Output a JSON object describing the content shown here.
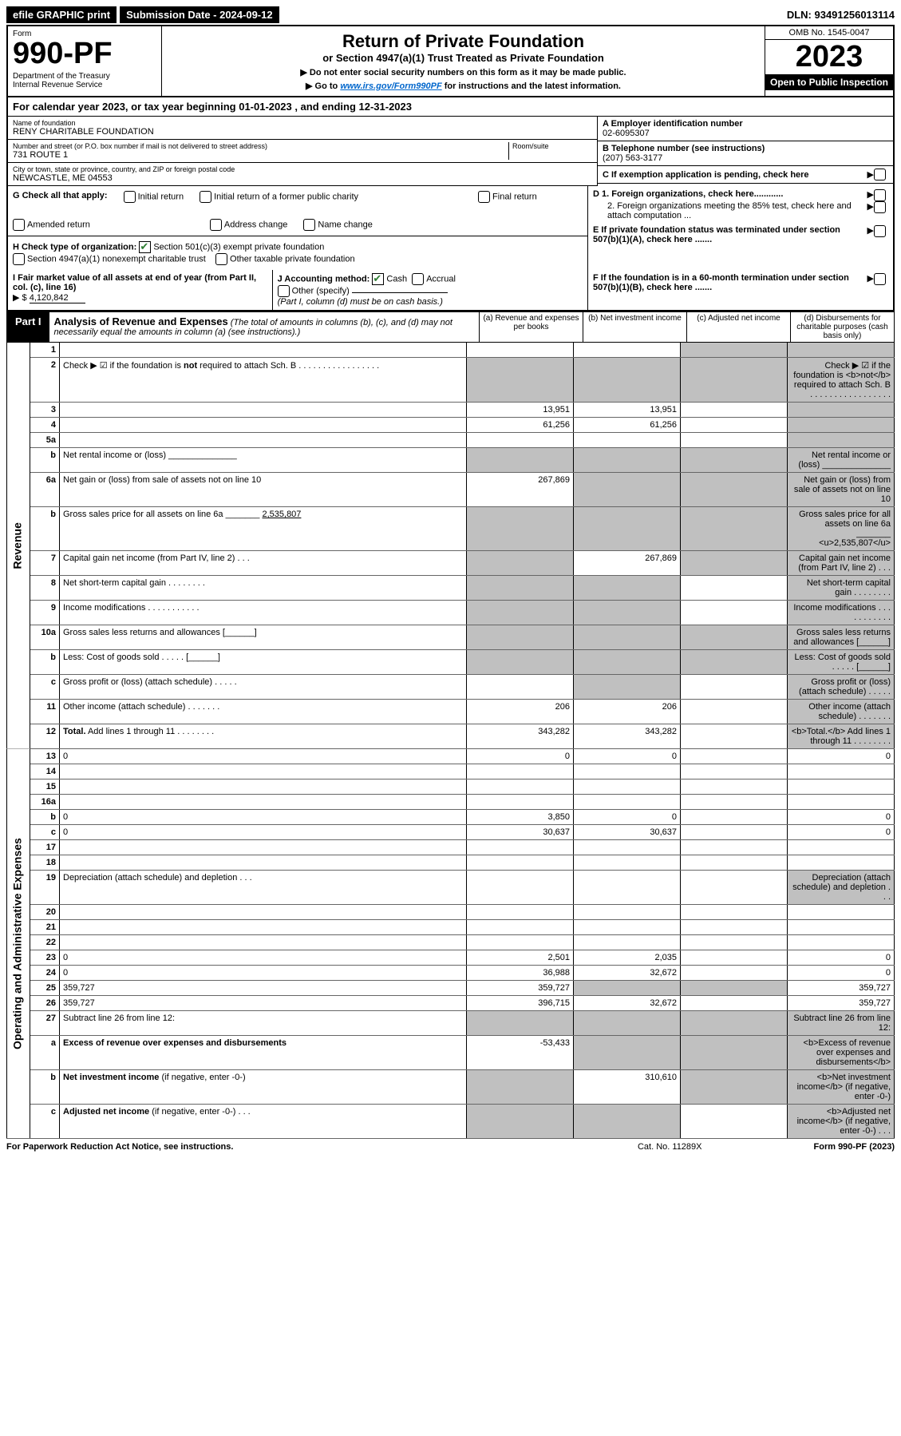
{
  "top": {
    "efile": "efile GRAPHIC print",
    "sub_lbl": "Submission Date - 2024-09-12",
    "dln": "DLN: 93491256013114"
  },
  "header": {
    "form_lbl": "Form",
    "form_num": "990-PF",
    "dept": "Department of the Treasury\nInternal Revenue Service",
    "title": "Return of Private Foundation",
    "subtitle": "or Section 4947(a)(1) Trust Treated as Private Foundation",
    "inst1": "▶ Do not enter social security numbers on this form as it may be made public.",
    "inst2_pre": "▶ Go to ",
    "inst2_link": "www.irs.gov/Form990PF",
    "inst2_post": " for instructions and the latest information.",
    "omb": "OMB No. 1545-0047",
    "year": "2023",
    "open": "Open to Public Inspection"
  },
  "calyear": "For calendar year 2023, or tax year beginning 01-01-2023           , and ending 12-31-2023",
  "name": {
    "lbl": "Name of foundation",
    "val": "RENY CHARITABLE FOUNDATION"
  },
  "addr": {
    "lbl": "Number and street (or P.O. box number if mail is not delivered to street address)",
    "val": "731 ROUTE 1",
    "room_lbl": "Room/suite"
  },
  "city": {
    "lbl": "City or town, state or province, country, and ZIP or foreign postal code",
    "val": "NEWCASTLE, ME  04553"
  },
  "ein": {
    "lbl": "A Employer identification number",
    "val": "02-6095307"
  },
  "tel": {
    "lbl": "B Telephone number (see instructions)",
    "val": "(207) 563-3177"
  },
  "c_lbl": "C If exemption application is pending, check here",
  "g": {
    "lbl": "G Check all that apply:",
    "opts": [
      "Initial return",
      "Initial return of a former public charity",
      "Final return",
      "Amended return",
      "Address change",
      "Name change"
    ]
  },
  "h": {
    "lbl": "H Check type of organization:",
    "o1": "Section 501(c)(3) exempt private foundation",
    "o2": "Section 4947(a)(1) nonexempt charitable trust",
    "o3": "Other taxable private foundation"
  },
  "d1": "D 1. Foreign organizations, check here............",
  "d2": "2. Foreign organizations meeting the 85% test, check here and attach computation ...",
  "e": "E  If private foundation status was terminated under section 507(b)(1)(A), check here .......",
  "f": "F  If the foundation is in a 60-month termination under section 507(b)(1)(B), check here .......",
  "i": {
    "lbl": "I Fair market value of all assets at end of year (from Part II, col. (c), line 16)",
    "val": "4,120,842"
  },
  "j": {
    "lbl": "J Accounting method:",
    "o1": "Cash",
    "o2": "Accrual",
    "o3": "Other (specify)",
    "note": "(Part I, column (d) must be on cash basis.)"
  },
  "part1": {
    "lbl": "Part I",
    "title": "Analysis of Revenue and Expenses",
    "note": " (The total of amounts in columns (b), (c), and (d) may not necessarily equal the amounts in column (a) (see instructions).)",
    "ca": "(a)  Revenue and expenses per books",
    "cb": "(b)  Net investment income",
    "cc": "(c)  Adjusted net income",
    "cd": "(d)  Disbursements for charitable purposes (cash basis only)"
  },
  "side": {
    "rev": "Revenue",
    "oae": "Operating and Administrative Expenses"
  },
  "rows": [
    {
      "n": "1",
      "d": "",
      "a": "",
      "b": "",
      "c": "",
      "shade_cd": true
    },
    {
      "n": "2",
      "d": "Check ▶ ☑ if the foundation is <b>not</b> required to attach Sch. B    .  .  .  .  .  .  .  .  .  .  .  .  .  .  .  .  .",
      "shade_all": true
    },
    {
      "n": "3",
      "d": "",
      "a": "13,951",
      "b": "13,951",
      "c": "",
      "shade_d": true
    },
    {
      "n": "4",
      "d": "",
      "a": "61,256",
      "b": "61,256",
      "c": "",
      "shade_d": true
    },
    {
      "n": "5a",
      "d": "",
      "a": "",
      "b": "",
      "c": "",
      "shade_d": true
    },
    {
      "n": "b",
      "d": "Net rental income or (loss) ______________",
      "shade_all": true
    },
    {
      "n": "6a",
      "d": "Net gain or (loss) from sale of assets not on line 10",
      "a": "267,869",
      "shade_bcd": true
    },
    {
      "n": "b",
      "d": "Gross sales price for all assets on line 6a _______ <u>2,535,807</u>",
      "shade_all": true
    },
    {
      "n": "7",
      "d": "Capital gain net income (from Part IV, line 2)   .   .   .",
      "shade_a": true,
      "b": "267,869",
      "shade_cd": true
    },
    {
      "n": "8",
      "d": "Net short-term capital gain   .  .  .  .  .  .  .  .",
      "shade_ab": true,
      "c": "",
      "shade_d": true
    },
    {
      "n": "9",
      "d": "Income modifications  .  .  .  .  .  .  .  .  .  .  .",
      "shade_ab": true,
      "c": "",
      "shade_d": true
    },
    {
      "n": "10a",
      "d": "Gross sales less returns and allowances  [______]",
      "shade_all": true
    },
    {
      "n": "b",
      "d": "Less: Cost of goods sold    .  .  .  .  .  [______]",
      "shade_all": true
    },
    {
      "n": "c",
      "d": "Gross profit or (loss) (attach schedule)    .  .  .  .  .",
      "a": "",
      "shade_b": true,
      "c": "",
      "shade_d": true
    },
    {
      "n": "11",
      "d": "Other income (attach schedule)   .  .  .  .  .  .  .",
      "a": "206",
      "b": "206",
      "c": "",
      "shade_d": true
    },
    {
      "n": "12",
      "d": "<b>Total.</b> Add lines 1 through 11   .  .  .  .  .  .  .  .",
      "a": "343,282",
      "b": "343,282",
      "c": "",
      "shade_d": true,
      "bold": true
    },
    {
      "n": "13",
      "d": "0",
      "a": "0",
      "b": "0",
      "c": "",
      "sect": "oae"
    },
    {
      "n": "14",
      "d": "",
      "a": "",
      "b": "",
      "c": ""
    },
    {
      "n": "15",
      "d": "",
      "a": "",
      "b": "",
      "c": ""
    },
    {
      "n": "16a",
      "d": "",
      "a": "",
      "b": "",
      "c": ""
    },
    {
      "n": "b",
      "d": "0",
      "a": "3,850",
      "b": "0",
      "c": ""
    },
    {
      "n": "c",
      "d": "0",
      "a": "30,637",
      "b": "30,637",
      "c": ""
    },
    {
      "n": "17",
      "d": "",
      "a": "",
      "b": "",
      "c": ""
    },
    {
      "n": "18",
      "d": "",
      "a": "",
      "b": "",
      "c": ""
    },
    {
      "n": "19",
      "d": "Depreciation (attach schedule) and depletion   .   .   .",
      "a": "",
      "b": "",
      "c": "",
      "shade_d": true
    },
    {
      "n": "20",
      "d": "",
      "a": "",
      "b": "",
      "c": ""
    },
    {
      "n": "21",
      "d": "",
      "a": "",
      "b": "",
      "c": ""
    },
    {
      "n": "22",
      "d": "",
      "a": "",
      "b": "",
      "c": ""
    },
    {
      "n": "23",
      "d": "0",
      "a": "2,501",
      "b": "2,035",
      "c": ""
    },
    {
      "n": "24",
      "d": "0",
      "a": "36,988",
      "b": "32,672",
      "c": ""
    },
    {
      "n": "25",
      "d": "359,727",
      "a": "359,727",
      "shade_bc": true
    },
    {
      "n": "26",
      "d": "359,727",
      "a": "396,715",
      "b": "32,672",
      "c": "",
      "bold": true
    },
    {
      "n": "27",
      "d": "Subtract line 26 from line 12:",
      "shade_all": true
    },
    {
      "n": "a",
      "d": "<b>Excess of revenue over expenses and disbursements</b>",
      "a": "-53,433",
      "shade_bcd": true
    },
    {
      "n": "b",
      "d": "<b>Net investment income</b> (if negative, enter -0-)",
      "shade_a": true,
      "b": "310,610",
      "shade_cd": true
    },
    {
      "n": "c",
      "d": "<b>Adjusted net income</b> (if negative, enter -0-)   .   .   .",
      "shade_ab": true,
      "c": "",
      "shade_d": true
    }
  ],
  "footer": {
    "left": "For Paperwork Reduction Act Notice, see instructions.",
    "mid": "Cat. No. 11289X",
    "right": "Form 990-PF (2023)"
  }
}
